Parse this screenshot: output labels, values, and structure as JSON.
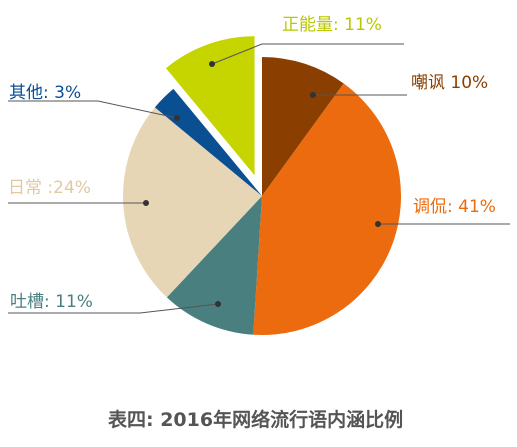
{
  "chart_data": {
    "type": "pie",
    "caption": "表四: 2016年网络流行语内涵比例",
    "slices": [
      {
        "name": "嘲讽",
        "value": 10,
        "label": "嘲讽 10%",
        "color": "#8a3f00",
        "exploded": false
      },
      {
        "name": "调侃",
        "value": 41,
        "label": "调侃: 41%",
        "color": "#ec6b0e",
        "exploded": false
      },
      {
        "name": "吐槽",
        "value": 11,
        "label": "吐槽: 11%",
        "color": "#4a7f80",
        "exploded": false
      },
      {
        "name": "日常",
        "value": 24,
        "label": "日常 :24%",
        "color": "#e6d6b6",
        "exploded": false
      },
      {
        "name": "其他",
        "value": 3,
        "label": "其他: 3%",
        "color": "#0b4f93",
        "exploded": false
      },
      {
        "name": "正能量",
        "value": 11,
        "label": "正能量: 11%",
        "color": "#c6d400",
        "exploded": true
      }
    ]
  }
}
